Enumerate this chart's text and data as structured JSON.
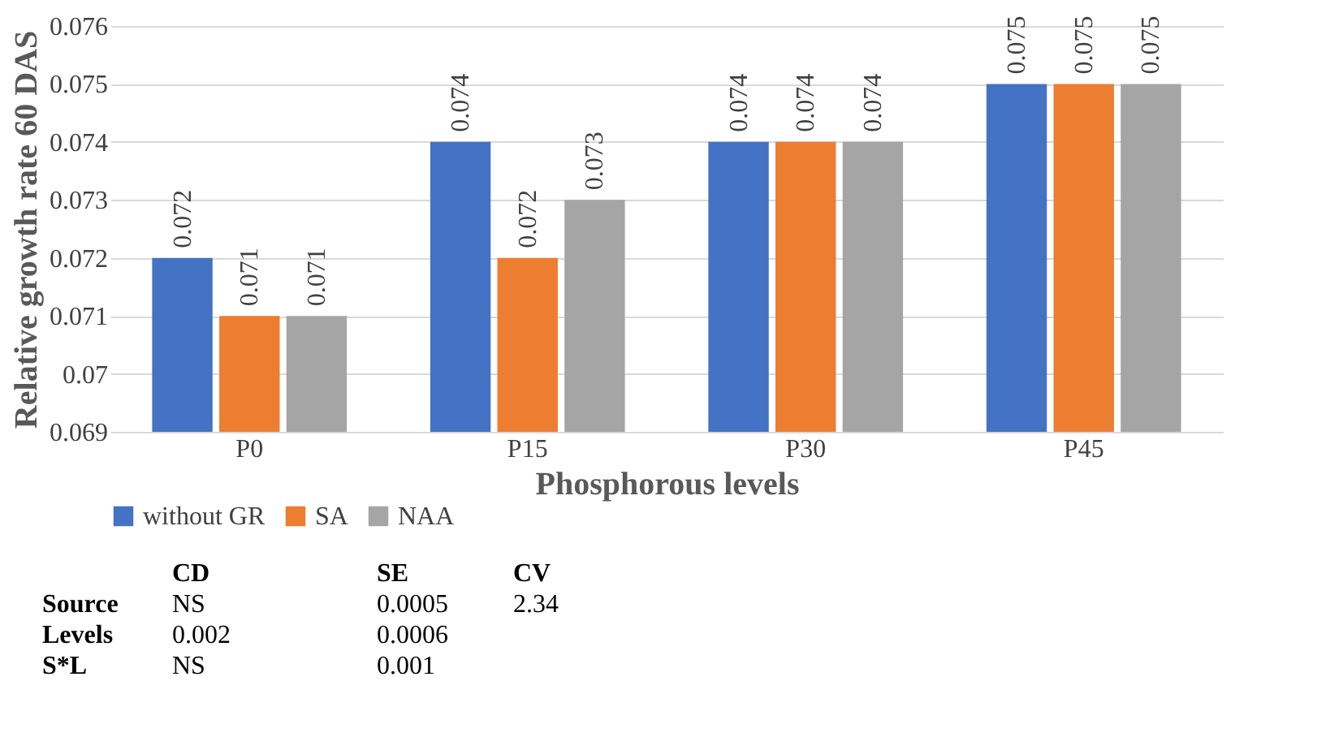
{
  "chart_data": {
    "type": "bar",
    "xlabel": "Phosphorous levels",
    "ylabel": "Relative growth rate 60 DAS",
    "categories": [
      "P0",
      "P15",
      "P30",
      "P45"
    ],
    "series": [
      {
        "name": "without GR",
        "color": "#4472c4",
        "values": [
          0.072,
          0.074,
          0.074,
          0.075
        ]
      },
      {
        "name": "SA",
        "color": "#ed7d31",
        "values": [
          0.071,
          0.072,
          0.074,
          0.075
        ]
      },
      {
        "name": "NAA",
        "color": "#a5a5a5",
        "values": [
          0.071,
          0.073,
          0.074,
          0.075
        ]
      }
    ],
    "ylim": [
      0.069,
      0.076
    ],
    "yticks": [
      0.069,
      0.07,
      0.071,
      0.072,
      0.073,
      0.074,
      0.075,
      0.076
    ],
    "grid": "y",
    "legend": "bottom",
    "data_labels": true,
    "annotations": [
      "\tCD\tSE\tCV",
      "Source\tNS\t0.0005\t2.34",
      "Levels\t0.002\t0.0006",
      "S*L\tNS\t0.001"
    ]
  }
}
